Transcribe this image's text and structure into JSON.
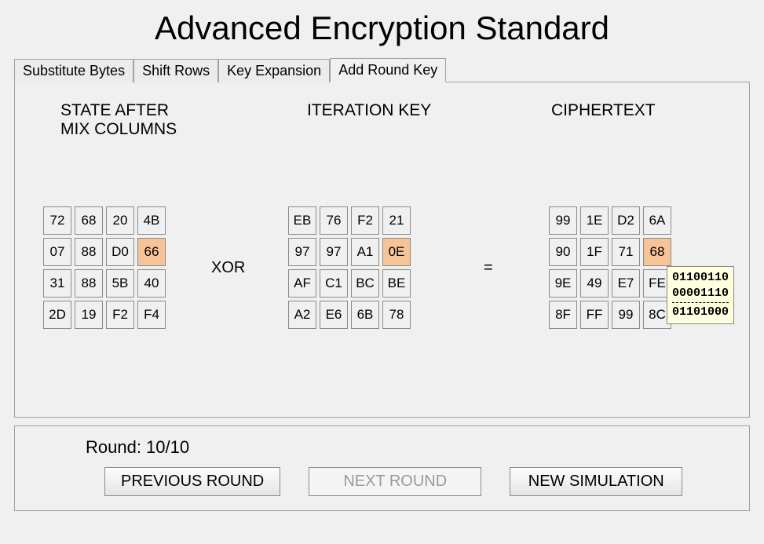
{
  "title": "Advanced Encryption Standard",
  "tabs": [
    {
      "label": "Substitute Bytes",
      "active": false
    },
    {
      "label": "Shift Rows",
      "active": false
    },
    {
      "label": "Key Expansion",
      "active": false
    },
    {
      "label": "Add Round Key",
      "active": true
    }
  ],
  "headings": {
    "state": "STATE AFTER\nMIX COLUMNS",
    "iteration": "ITERATION KEY",
    "ciphertext": "CIPHERTEXT"
  },
  "operators": {
    "xor": "XOR",
    "eq": "="
  },
  "highlight": {
    "row": 1,
    "col": 3
  },
  "matrices": {
    "state": [
      [
        "72",
        "68",
        "20",
        "4B"
      ],
      [
        "07",
        "88",
        "D0",
        "66"
      ],
      [
        "31",
        "88",
        "5B",
        "40"
      ],
      [
        "2D",
        "19",
        "F2",
        "F4"
      ]
    ],
    "iteration": [
      [
        "EB",
        "76",
        "F2",
        "21"
      ],
      [
        "97",
        "97",
        "A1",
        "0E"
      ],
      [
        "AF",
        "C1",
        "BC",
        "BE"
      ],
      [
        "A2",
        "E6",
        "6B",
        "78"
      ]
    ],
    "ciphertext": [
      [
        "99",
        "1E",
        "D2",
        "6A"
      ],
      [
        "90",
        "1F",
        "71",
        "68"
      ],
      [
        "9E",
        "49",
        "E7",
        "FE"
      ],
      [
        "8F",
        "FF",
        "99",
        "8C"
      ]
    ]
  },
  "tooltip": {
    "a": "01100110",
    "b": "00001110",
    "r": "01101000"
  },
  "round": {
    "label": "Round: 10/10",
    "current": 10,
    "total": 10
  },
  "buttons": {
    "previous": "PREVIOUS ROUND",
    "next": "NEXT ROUND",
    "newsim": "NEW SIMULATION"
  },
  "colors": {
    "background": "#f0f0f0",
    "border": "#a0a0a0",
    "cell_border": "#8a8a8a",
    "highlight": "#f6c497",
    "tooltip_bg": "#ffffe0"
  }
}
